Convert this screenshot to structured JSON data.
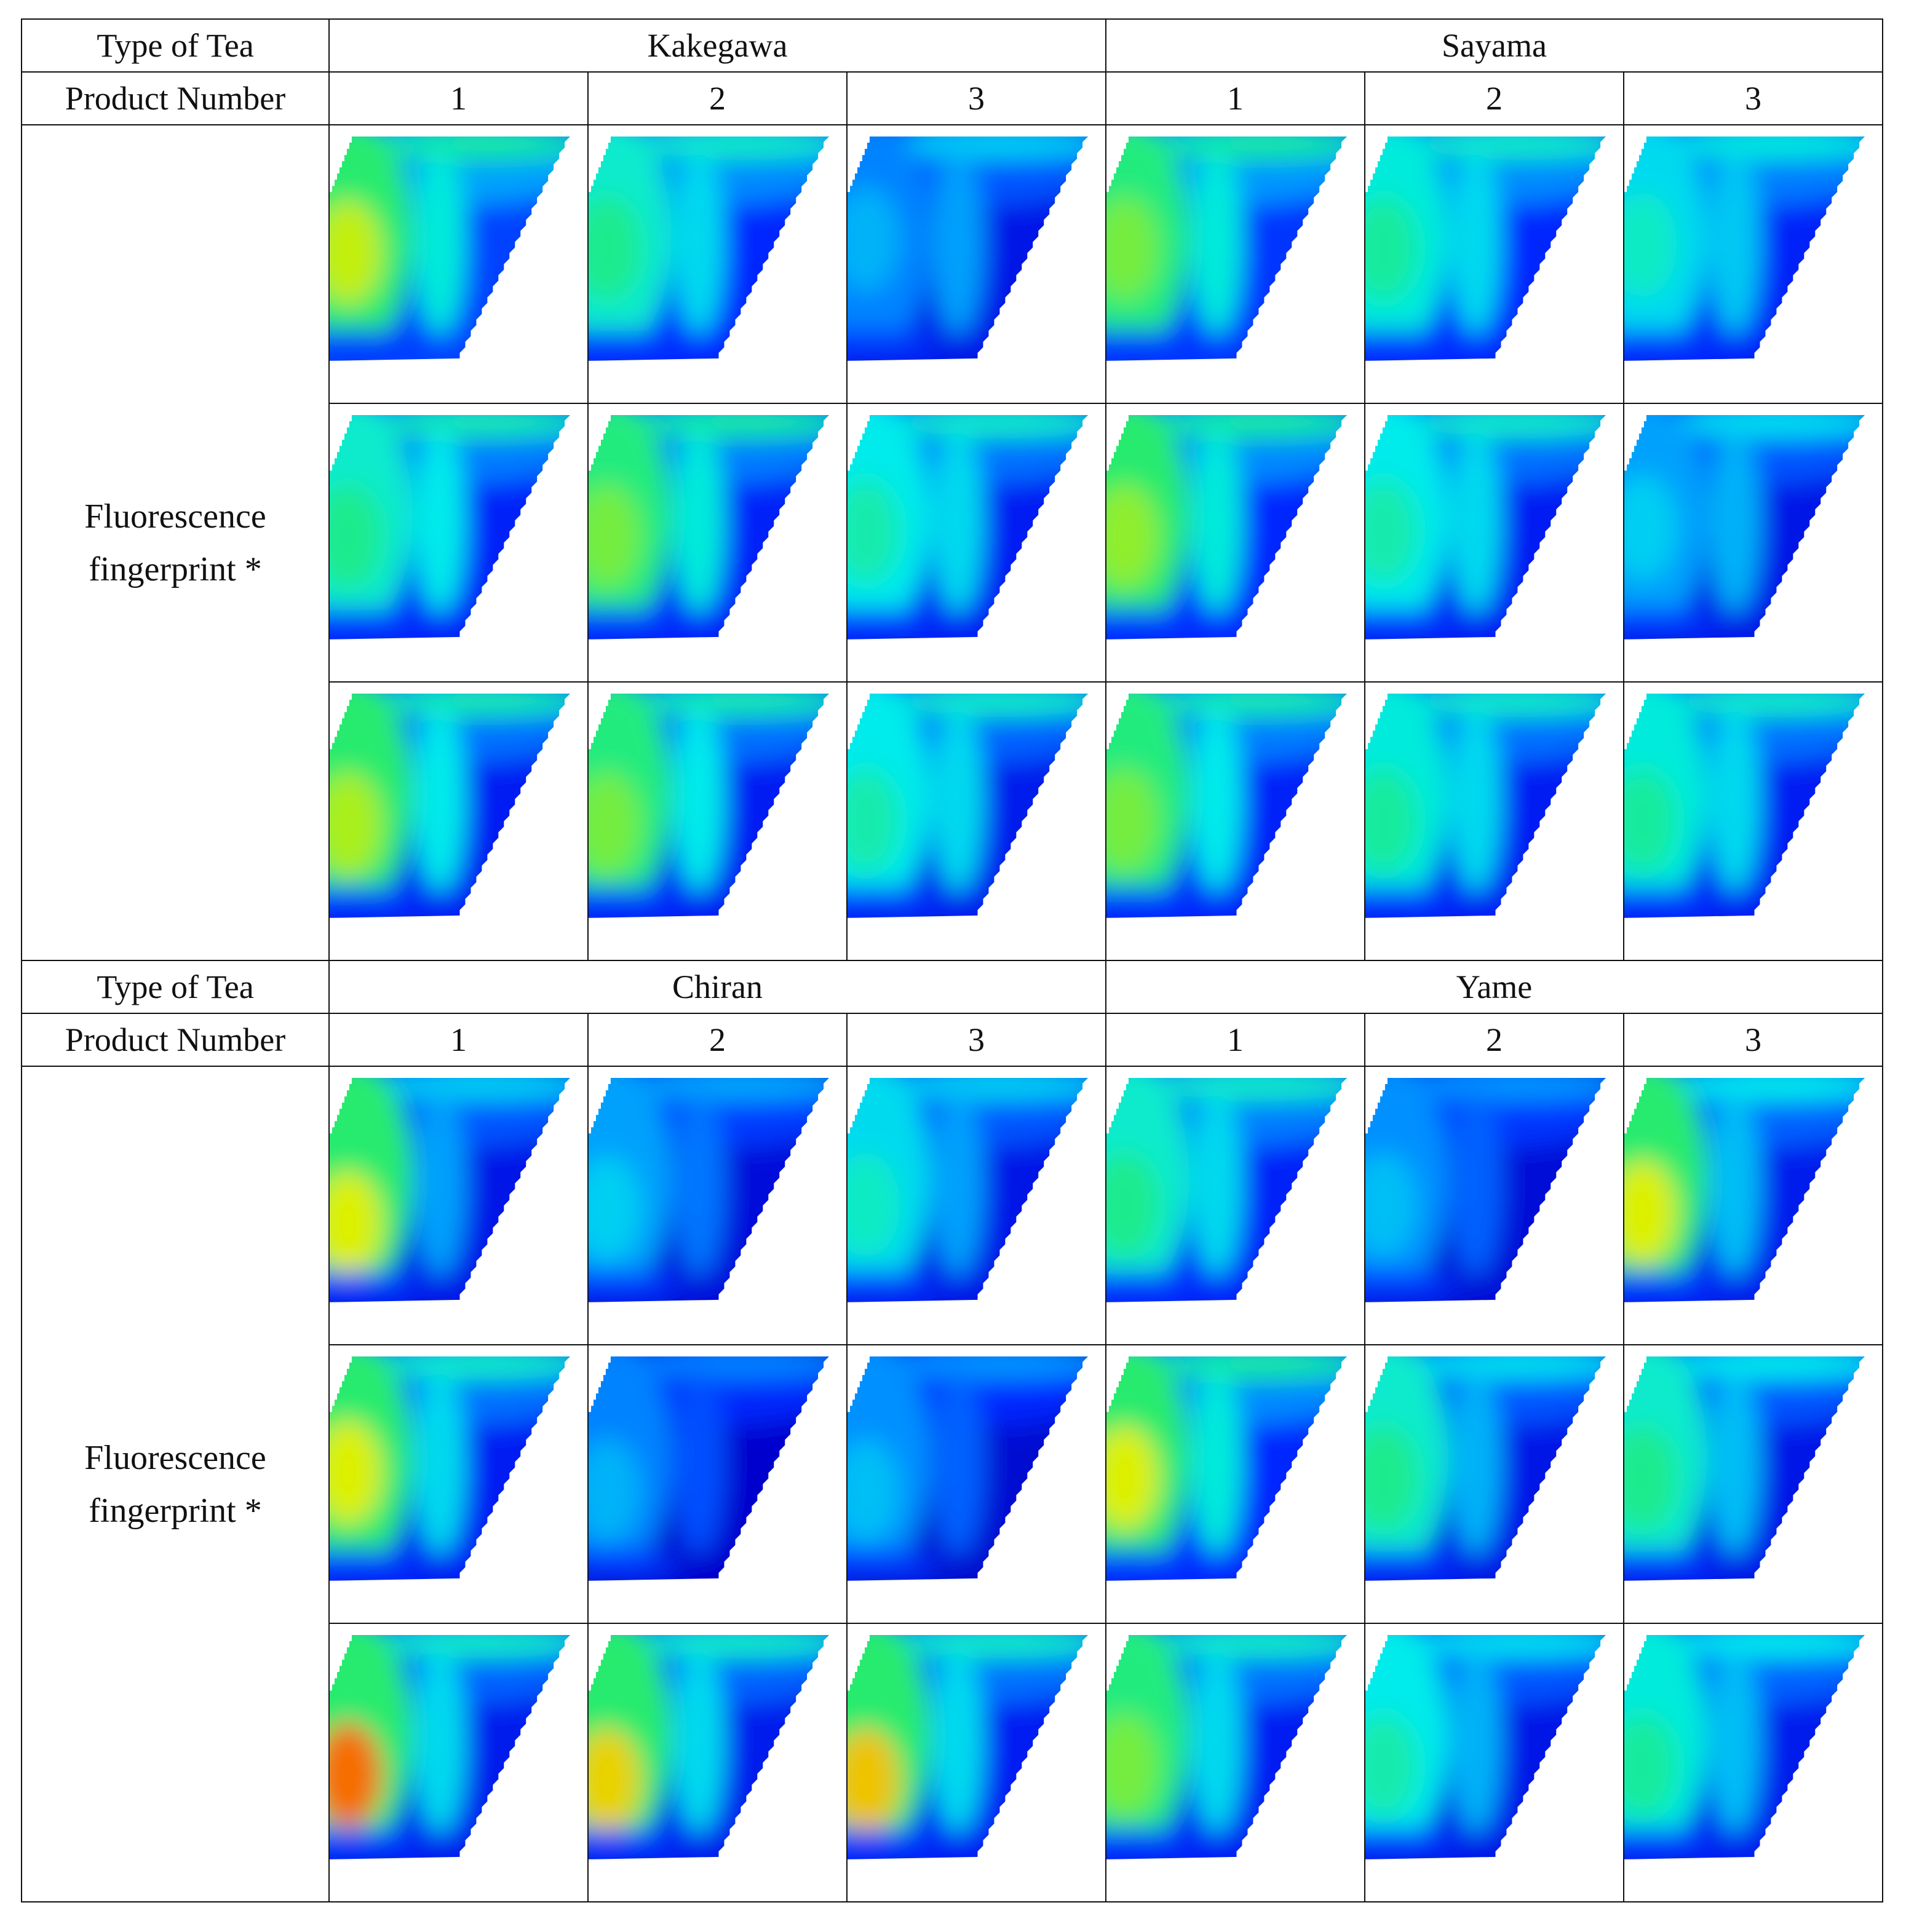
{
  "table": {
    "type_label": "Type of Tea",
    "product_label": "Product Number",
    "fingerprint_label": "Fluorescence fingerprint *",
    "groups": [
      {
        "name": "Kakegawa",
        "products": [
          "1",
          "2",
          "3"
        ]
      },
      {
        "name": "Sayama",
        "products": [
          "1",
          "2",
          "3"
        ]
      },
      {
        "name": "Chiran",
        "products": [
          "1",
          "2",
          "3"
        ]
      },
      {
        "name": "Yame",
        "products": [
          "1",
          "2",
          "3"
        ]
      }
    ],
    "blocks": [
      {
        "left": "Kakegawa",
        "right": "Sayama",
        "maps": [
          [
            {
              "hot": 0.78,
              "band": 0.6,
              "back": 0.22,
              "peak": 0.52
            },
            {
              "hot": 0.62,
              "band": 0.55,
              "back": 0.18,
              "peak": 0.5
            },
            {
              "hot": 0.4,
              "band": 0.45,
              "back": 0.1,
              "peak": 0.45
            },
            {
              "hot": 0.72,
              "band": 0.6,
              "back": 0.2,
              "peak": 0.5
            },
            {
              "hot": 0.6,
              "band": 0.55,
              "back": 0.18,
              "peak": 0.5
            },
            {
              "hot": 0.55,
              "band": 0.52,
              "back": 0.16,
              "peak": 0.48
            }
          ],
          [
            {
              "hot": 0.62,
              "band": 0.58,
              "back": 0.16,
              "peak": 0.55
            },
            {
              "hot": 0.72,
              "band": 0.6,
              "back": 0.16,
              "peak": 0.55
            },
            {
              "hot": 0.58,
              "band": 0.55,
              "back": 0.14,
              "peak": 0.52
            },
            {
              "hot": 0.74,
              "band": 0.6,
              "back": 0.18,
              "peak": 0.55
            },
            {
              "hot": 0.58,
              "band": 0.55,
              "back": 0.14,
              "peak": 0.52
            },
            {
              "hot": 0.45,
              "band": 0.48,
              "back": 0.1,
              "peak": 0.5
            }
          ],
          [
            {
              "hot": 0.76,
              "band": 0.58,
              "back": 0.14,
              "peak": 0.6
            },
            {
              "hot": 0.72,
              "band": 0.58,
              "back": 0.14,
              "peak": 0.6
            },
            {
              "hot": 0.58,
              "band": 0.55,
              "back": 0.12,
              "peak": 0.58
            },
            {
              "hot": 0.72,
              "band": 0.58,
              "back": 0.16,
              "peak": 0.58
            },
            {
              "hot": 0.6,
              "band": 0.55,
              "back": 0.14,
              "peak": 0.58
            },
            {
              "hot": 0.6,
              "band": 0.55,
              "back": 0.14,
              "peak": 0.58
            }
          ]
        ]
      },
      {
        "left": "Chiran",
        "right": "Yame",
        "maps": [
          [
            {
              "hot": 0.8,
              "band": 0.45,
              "back": 0.1,
              "peak": 0.68
            },
            {
              "hot": 0.45,
              "band": 0.38,
              "back": 0.06,
              "peak": 0.6
            },
            {
              "hot": 0.55,
              "band": 0.45,
              "back": 0.1,
              "peak": 0.58
            },
            {
              "hot": 0.62,
              "band": 0.55,
              "back": 0.16,
              "peak": 0.58
            },
            {
              "hot": 0.42,
              "band": 0.35,
              "back": 0.05,
              "peak": 0.58
            },
            {
              "hot": 0.8,
              "band": 0.5,
              "back": 0.12,
              "peak": 0.62
            }
          ],
          [
            {
              "hot": 0.8,
              "band": 0.55,
              "back": 0.14,
              "peak": 0.52
            },
            {
              "hot": 0.4,
              "band": 0.32,
              "back": 0.02,
              "peak": 0.62
            },
            {
              "hot": 0.42,
              "band": 0.35,
              "back": 0.03,
              "peak": 0.62
            },
            {
              "hot": 0.8,
              "band": 0.6,
              "back": 0.18,
              "peak": 0.55
            },
            {
              "hot": 0.62,
              "band": 0.48,
              "back": 0.1,
              "peak": 0.55
            },
            {
              "hot": 0.62,
              "band": 0.5,
              "back": 0.1,
              "peak": 0.55
            }
          ],
          [
            {
              "hot": 0.95,
              "band": 0.55,
              "back": 0.12,
              "peak": 0.65
            },
            {
              "hot": 0.84,
              "band": 0.55,
              "back": 0.12,
              "peak": 0.68
            },
            {
              "hot": 0.86,
              "band": 0.55,
              "back": 0.14,
              "peak": 0.68
            },
            {
              "hot": 0.72,
              "band": 0.55,
              "back": 0.14,
              "peak": 0.6
            },
            {
              "hot": 0.58,
              "band": 0.48,
              "back": 0.1,
              "peak": 0.6
            },
            {
              "hot": 0.6,
              "band": 0.5,
              "back": 0.12,
              "peak": 0.6
            }
          ]
        ]
      }
    ]
  },
  "colors": {
    "border": "#111111",
    "background": "#ffffff"
  }
}
